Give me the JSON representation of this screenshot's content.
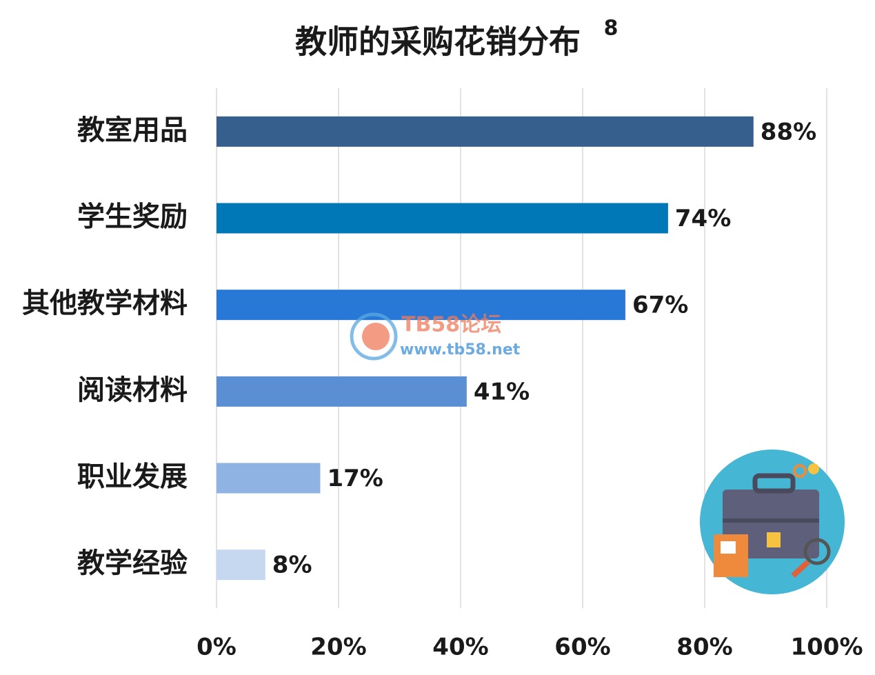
{
  "chart_data": {
    "type": "bar",
    "orientation": "horizontal",
    "title": "教师的采购花销分布",
    "title_superscript": "8",
    "categories": [
      "教室用品",
      "学生奖励",
      "其他教学材料",
      "阅读材料",
      "职业发展",
      "教学经验"
    ],
    "values": [
      88,
      74,
      67,
      41,
      17,
      8
    ],
    "value_labels": [
      "88%",
      "74%",
      "67%",
      "41%",
      "17%",
      "8%"
    ],
    "colors": [
      "#365f8e",
      "#0077b6",
      "#2878d8",
      "#5a8fd4",
      "#8fb3e2",
      "#c5d8f0"
    ],
    "xlim": [
      0,
      100
    ],
    "xticks": [
      {
        "value": 0,
        "label": "0%"
      },
      {
        "value": 20,
        "label": "20%"
      },
      {
        "value": 40,
        "label": "40%"
      },
      {
        "value": 60,
        "label": "60%"
      },
      {
        "value": 80,
        "label": "80%"
      },
      {
        "value": 100,
        "label": "100%"
      }
    ],
    "grid": true,
    "watermark": [
      "TB58论坛",
      "www.tb58.net"
    ]
  }
}
